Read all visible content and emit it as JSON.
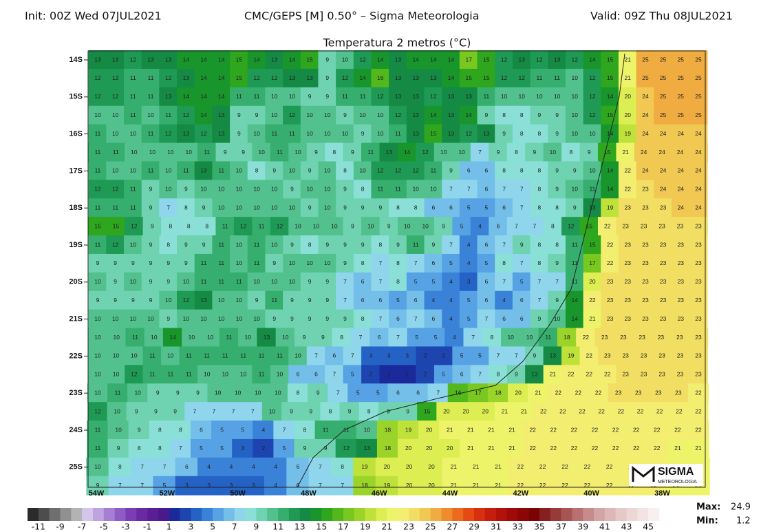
{
  "header": {
    "init": "Init: 00Z Wed 07JUL2021",
    "model": "CMC/GEPS [M] 0.50° – Sigma Meteorologia",
    "valid": "Valid: 09Z Thu 08JUL2021",
    "title": "Temperatura 2 metros (°C)"
  },
  "map": {
    "lat_labels": [
      "14S",
      "15S",
      "16S",
      "17S",
      "18S",
      "19S",
      "20S",
      "21S",
      "22S",
      "23S",
      "24S",
      "25S"
    ],
    "lon_labels": [
      "54W",
      "52W",
      "50W",
      "48W",
      "46W",
      "44W",
      "42W",
      "40W",
      "38W"
    ],
    "rows": [
      [
        13,
        13,
        12,
        13,
        13,
        14,
        14,
        14,
        15,
        14,
        13,
        14,
        15,
        9,
        10,
        12,
        14,
        13,
        14,
        14,
        14,
        17,
        15,
        12,
        13,
        12,
        13,
        12,
        14,
        15,
        21,
        25,
        25,
        25,
        25
      ],
      [
        12,
        12,
        11,
        11,
        12,
        13,
        14,
        14,
        15,
        12,
        12,
        13,
        13,
        9,
        12,
        14,
        16,
        13,
        13,
        13,
        14,
        15,
        15,
        12,
        12,
        11,
        11,
        10,
        12,
        15,
        21,
        25,
        25,
        25,
        25
      ],
      [
        12,
        12,
        11,
        11,
        13,
        14,
        14,
        14,
        11,
        11,
        10,
        10,
        9,
        9,
        11,
        11,
        12,
        13,
        13,
        12,
        13,
        13,
        11,
        10,
        10,
        10,
        10,
        10,
        12,
        14,
        20,
        24,
        25,
        25,
        25
      ],
      [
        10,
        10,
        11,
        10,
        11,
        12,
        14,
        13,
        9,
        9,
        10,
        12,
        10,
        10,
        9,
        10,
        10,
        12,
        13,
        14,
        13,
        14,
        9,
        8,
        8,
        9,
        9,
        10,
        12,
        15,
        20,
        24,
        25,
        25,
        25
      ],
      [
        11,
        10,
        10,
        11,
        12,
        13,
        12,
        13,
        9,
        10,
        11,
        11,
        10,
        10,
        10,
        9,
        10,
        11,
        13,
        15,
        13,
        12,
        13,
        9,
        8,
        8,
        9,
        10,
        10,
        14,
        19,
        24,
        24,
        24,
        24
      ],
      [
        11,
        11,
        10,
        10,
        10,
        10,
        11,
        9,
        9,
        10,
        11,
        10,
        9,
        8,
        9,
        11,
        13,
        14,
        12,
        10,
        10,
        7,
        9,
        8,
        9,
        10,
        8,
        9,
        15,
        21,
        24,
        24,
        24,
        24
      ],
      [
        11,
        10,
        10,
        11,
        10,
        11,
        13,
        11,
        10,
        8,
        9,
        10,
        9,
        10,
        8,
        10,
        12,
        12,
        12,
        11,
        9,
        6,
        6,
        8,
        8,
        8,
        9,
        9,
        10,
        14,
        22,
        24,
        24,
        24,
        24
      ],
      [
        12,
        12,
        11,
        9,
        10,
        9,
        10,
        10,
        10,
        10,
        10,
        9,
        10,
        10,
        9,
        8,
        11,
        11,
        10,
        10,
        7,
        7,
        6,
        7,
        7,
        8,
        9,
        10,
        11,
        14,
        22,
        23,
        24,
        24,
        24
      ],
      [
        11,
        11,
        11,
        9,
        7,
        8,
        9,
        10,
        10,
        10,
        10,
        10,
        9,
        10,
        9,
        9,
        9,
        8,
        8,
        6,
        6,
        5,
        5,
        6,
        7,
        8,
        8,
        9,
        13,
        19,
        23,
        23,
        23,
        24,
        24
      ],
      [
        15,
        15,
        12,
        9,
        8,
        8,
        8,
        11,
        12,
        11,
        12,
        10,
        10,
        10,
        9,
        10,
        9,
        10,
        10,
        9,
        5,
        4,
        6,
        7,
        7,
        8,
        12,
        15,
        22,
        23,
        23,
        23,
        23,
        23
      ],
      [
        11,
        12,
        10,
        9,
        8,
        9,
        9,
        11,
        10,
        11,
        10,
        9,
        8,
        9,
        9,
        9,
        8,
        9,
        11,
        9,
        7,
        4,
        6,
        7,
        9,
        8,
        8,
        11,
        15,
        22,
        23,
        23,
        23,
        23,
        23
      ],
      [
        9,
        9,
        9,
        9,
        9,
        9,
        11,
        11,
        10,
        11,
        9,
        10,
        10,
        10,
        9,
        8,
        7,
        8,
        7,
        6,
        5,
        4,
        5,
        8,
        7,
        8,
        9,
        11,
        17,
        22,
        23,
        23,
        23,
        23,
        23
      ],
      [
        10,
        9,
        10,
        9,
        9,
        10,
        11,
        11,
        11,
        10,
        10,
        10,
        9,
        9,
        7,
        6,
        7,
        8,
        5,
        5,
        4,
        3,
        6,
        7,
        5,
        7,
        7,
        11,
        20,
        23,
        23,
        23,
        23,
        23,
        23
      ],
      [
        9,
        9,
        9,
        9,
        10,
        12,
        13,
        10,
        10,
        9,
        11,
        9,
        9,
        9,
        7,
        6,
        6,
        5,
        6,
        4,
        4,
        5,
        6,
        4,
        6,
        7,
        9,
        14,
        22,
        23,
        23,
        23,
        23,
        23,
        23
      ],
      [
        10,
        10,
        10,
        10,
        9,
        10,
        10,
        10,
        10,
        10,
        9,
        9,
        9,
        9,
        9,
        8,
        7,
        6,
        7,
        6,
        4,
        5,
        7,
        6,
        6,
        9,
        10,
        14,
        21,
        23,
        23,
        23,
        23,
        23,
        23
      ],
      [
        10,
        10,
        11,
        10,
        14,
        10,
        10,
        11,
        10,
        13,
        10,
        9,
        9,
        8,
        7,
        6,
        7,
        5,
        5,
        4,
        7,
        8,
        10,
        10,
        11,
        18,
        22,
        23,
        23,
        23,
        23,
        23,
        23
      ],
      [
        10,
        10,
        10,
        11,
        10,
        11,
        11,
        11,
        11,
        11,
        11,
        10,
        7,
        6,
        7,
        3,
        3,
        3,
        2,
        2,
        5,
        5,
        7,
        7,
        9,
        13,
        19,
        22,
        23,
        23,
        23,
        23,
        23,
        23
      ],
      [
        10,
        10,
        12,
        11,
        11,
        11,
        10,
        10,
        10,
        11,
        10,
        6,
        6,
        7,
        5,
        2,
        1,
        1,
        2,
        5,
        6,
        7,
        8,
        9,
        13,
        21,
        22,
        22,
        22,
        23,
        23,
        23,
        23,
        23
      ],
      [
        10,
        11,
        10,
        9,
        9,
        9,
        10,
        10,
        10,
        10,
        8,
        9,
        7,
        5,
        5,
        6,
        6,
        7,
        16,
        17,
        18,
        20,
        21,
        22,
        22,
        22,
        23,
        23,
        23,
        23,
        22
      ],
      [
        12,
        10,
        9,
        9,
        9,
        7,
        7,
        7,
        7,
        10,
        9,
        9,
        8,
        9,
        8,
        9,
        9,
        15,
        20,
        20,
        20,
        21,
        21,
        22,
        22,
        22,
        22,
        22,
        22,
        22,
        22,
        22
      ],
      [
        11,
        10,
        9,
        8,
        8,
        6,
        5,
        5,
        4,
        7,
        8,
        11,
        11,
        10,
        18,
        19,
        20,
        21,
        21,
        21,
        21,
        22,
        22,
        22,
        22,
        22,
        22,
        22,
        22,
        22
      ],
      [
        11,
        9,
        8,
        8,
        7,
        5,
        5,
        3,
        2,
        5,
        9,
        9,
        12,
        13,
        18,
        20,
        20,
        20,
        21,
        21,
        21,
        22,
        22,
        22,
        22,
        22,
        22,
        22,
        21,
        21
      ],
      [
        10,
        8,
        7,
        7,
        6,
        4,
        4,
        4,
        4,
        6,
        7,
        8,
        19,
        20,
        20,
        20,
        21,
        21,
        21,
        22,
        22,
        22,
        22,
        22,
        22,
        22,
        21,
        21
      ],
      [
        9,
        7,
        7,
        5,
        3,
        3,
        3,
        3,
        4,
        6,
        7,
        7,
        18,
        19,
        20,
        20,
        21,
        21,
        21,
        22,
        22,
        22,
        22,
        22,
        22,
        22,
        21,
        21
      ]
    ]
  },
  "colorbar": {
    "labels": [
      -11,
      -9,
      -7,
      -5,
      -3,
      -1,
      1,
      3,
      5,
      7,
      9,
      11,
      13,
      15,
      17,
      19,
      21,
      23,
      25,
      27,
      29,
      31,
      33,
      35,
      37,
      39,
      41,
      43,
      45
    ],
    "colors": [
      "#2b2b2b",
      "#4d4d4d",
      "#6f6f6f",
      "#919191",
      "#b3b3b3",
      "#d4c6ea",
      "#bfa3e0",
      "#a67fd3",
      "#8e5cc4",
      "#7a3db3",
      "#6a2aa3",
      "#5a1f96",
      "#4a1a8c",
      "#1a2a9a",
      "#1e44b0",
      "#2462c6",
      "#3a82d8",
      "#56a2e4",
      "#74bfe9",
      "#8fd6ec",
      "#8ae0d6",
      "#6fd2b0",
      "#52c18e",
      "#35ae6e",
      "#1f9a55",
      "#148a44",
      "#18962c",
      "#2ea61e",
      "#52b81c",
      "#78c820",
      "#9ad428",
      "#bfe23a",
      "#dcee52",
      "#eef46a",
      "#f4ee70",
      "#f2de62",
      "#f0c852",
      "#f0ac40",
      "#ef8c2e",
      "#ec6a1e",
      "#e64a12",
      "#d8300e",
      "#c61e0c",
      "#b2120a",
      "#9e0a08",
      "#8c0606",
      "#7a0404",
      "#862020",
      "#983a3a",
      "#a85454",
      "#b87070",
      "#c68c8c",
      "#d2a4a4",
      "#deb8b8",
      "#e6c8c8",
      "#ecd6d6",
      "#f2e4e4",
      "#f8f0f0"
    ]
  },
  "stats": {
    "max_label": "Max:",
    "max": 24.9,
    "min_label": "Min:",
    "min": 1.2
  },
  "logo": {
    "name": "SIGMA",
    "sub": "METEOROLOGIA"
  }
}
